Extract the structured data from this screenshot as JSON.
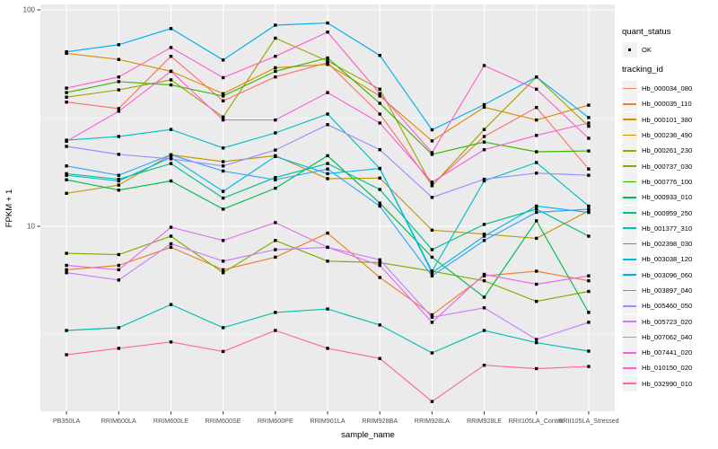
{
  "figure": {
    "x_axis_label": "sample_name",
    "y_axis_label": "FPKM + 1",
    "panel_bg": "#EBEBEB",
    "grid_color": "#FFFFFF",
    "tick_label_color": "#4D4D4D",
    "tick_mark_color": "#333333",
    "point_color": "#000000"
  },
  "legend": {
    "quant_status_title": "quant_status",
    "quant_status_items": [
      {
        "label": "OK"
      }
    ],
    "tracking_title": "tracking_id",
    "key_bg": "#F2F2F2"
  },
  "chart_data": {
    "type": "line",
    "title": "",
    "xlabel": "sample_name",
    "ylabel": "FPKM + 1",
    "y_scale": "log10",
    "ylim": [
      1.4,
      105
    ],
    "y_major_ticks": [
      100,
      10
    ],
    "y_minor_gridlines": [
      31.62,
      3.162
    ],
    "grid": true,
    "legend_position": "right",
    "categories": [
      "PB350LA",
      "RRIM600LA",
      "RRIM600LE",
      "RRIM600SE",
      "RRIM600PE",
      "RRIM901LA",
      "RRIM928BA",
      "RRIM928LA",
      "RRIM928LE",
      "RRII105LA_Control",
      "RRII105LA_Stressed"
    ],
    "series": [
      {
        "name": "Hb_000034_080",
        "color": "#F8766D",
        "values": [
          37.5,
          35,
          61,
          38,
          49,
          57,
          33,
          15.5,
          26,
          35.4,
          18.4
        ]
      },
      {
        "name": "Hb_000035_110",
        "color": "#EA8331",
        "values": [
          6.3,
          6.6,
          8.0,
          6.3,
          7.2,
          9.3,
          5.8,
          3.9,
          5.9,
          6.2,
          5.6
        ]
      },
      {
        "name": "Hb_000101_380",
        "color": "#D89000",
        "values": [
          63,
          59,
          52,
          41,
          54,
          56,
          40,
          24.8,
          35.5,
          31,
          36.3
        ]
      },
      {
        "name": "Hb_000236_490",
        "color": "#C09B00",
        "values": [
          14.2,
          15.5,
          21.4,
          19.9,
          21.2,
          16.6,
          16.7,
          9.6,
          9.2,
          8.8,
          11.8
        ]
      },
      {
        "name": "Hb_000261_230",
        "color": "#A3A500",
        "values": [
          39.5,
          42.7,
          47.5,
          32,
          74,
          58,
          43,
          15.4,
          28,
          49,
          29
        ]
      },
      {
        "name": "Hb_000737_030",
        "color": "#7CAE00",
        "values": [
          7.5,
          7.4,
          9.0,
          6.1,
          8.6,
          6.9,
          6.8,
          6.2,
          5.6,
          4.5,
          5.0
        ]
      },
      {
        "name": "Hb_000776_100",
        "color": "#39B600",
        "values": [
          41.5,
          46.6,
          45,
          40,
          52,
          60,
          37,
          21.5,
          24.5,
          22.1,
          22.3
        ]
      },
      {
        "name": "Hb_000933_010",
        "color": "#00BB4E",
        "values": [
          16.4,
          14.7,
          16.2,
          12,
          15,
          21.2,
          12.8,
          7.2,
          4.7,
          10.6,
          4.0
        ]
      },
      {
        "name": "Hb_000959_250",
        "color": "#00C087",
        "values": [
          17.5,
          16.5,
          19.5,
          13.5,
          16.8,
          19.5,
          14.8,
          7.8,
          10.2,
          12.0,
          9.0
        ]
      },
      {
        "name": "Hb_001377_310",
        "color": "#00C0AF",
        "values": [
          3.3,
          3.4,
          4.35,
          3.4,
          4.0,
          4.15,
          3.5,
          2.6,
          3.3,
          2.9,
          2.65
        ]
      },
      {
        "name": "Hb_002398_030",
        "color": "#00BFC4",
        "values": [
          25,
          26,
          28,
          23,
          27,
          33,
          18.5,
          6.2,
          16.2,
          19.7,
          12.4
        ]
      },
      {
        "name": "Hb_003038_120",
        "color": "#00B8E7",
        "values": [
          17.2,
          16.2,
          20.8,
          14.5,
          21,
          17.5,
          18.5,
          6.1,
          9.0,
          12.4,
          11.6
        ]
      },
      {
        "name": "Hb_003096_060",
        "color": "#00B0F6",
        "values": [
          64,
          69,
          82,
          58.7,
          85,
          87,
          61.6,
          27.9,
          36.5,
          49,
          31.8
        ]
      },
      {
        "name": "Hb_003897_040",
        "color": "#35A2FF",
        "values": [
          19,
          17.2,
          21.4,
          18,
          16.4,
          18.4,
          12.4,
          5.9,
          8.6,
          11.6,
          12.0
        ]
      },
      {
        "name": "Hb_005460_050",
        "color": "#9590FF",
        "values": [
          23.4,
          21.5,
          20.5,
          19,
          22.5,
          29.5,
          22.6,
          13.6,
          16.5,
          17.6,
          17.2
        ]
      },
      {
        "name": "Hb_005723_020",
        "color": "#C77CFF",
        "values": [
          6.1,
          5.65,
          8.3,
          6.9,
          7.8,
          8.0,
          7.0,
          3.8,
          4.2,
          3.0,
          3.6
        ]
      },
      {
        "name": "Hb_007062_040",
        "color": "#E76BF3",
        "values": [
          6.6,
          6.3,
          9.9,
          8.6,
          10.4,
          8.0,
          6.6,
          3.6,
          6.0,
          5.4,
          5.9
        ]
      },
      {
        "name": "Hb_007441_020",
        "color": "#FA62DB",
        "values": [
          24.7,
          34,
          52,
          31,
          31,
          41.5,
          30,
          16,
          22.6,
          26.3,
          30
        ]
      },
      {
        "name": "Hb_010150_020",
        "color": "#FF61CC",
        "values": [
          43.5,
          49,
          67,
          48.6,
          61,
          79,
          41,
          21.9,
          55.3,
          43,
          25.5
        ]
      },
      {
        "name": "Hb_032990_010",
        "color": "#FF689E",
        "values": [
          2.55,
          2.73,
          2.92,
          2.64,
          3.3,
          2.73,
          2.45,
          1.55,
          2.28,
          2.2,
          2.25
        ]
      }
    ]
  }
}
